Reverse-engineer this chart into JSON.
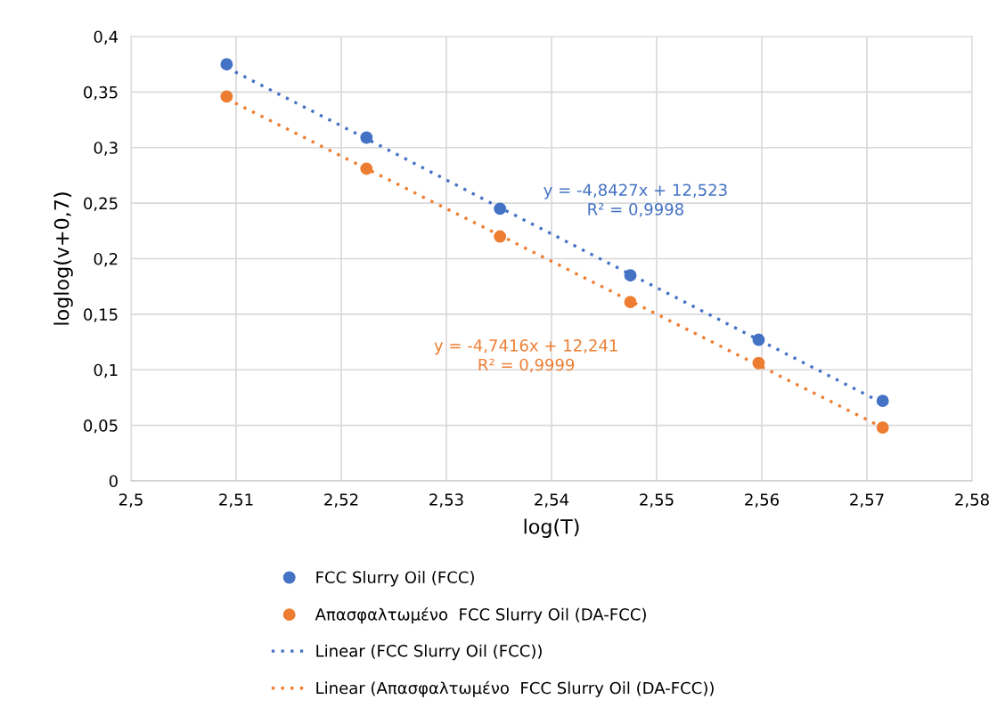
{
  "chart_data": {
    "type": "scatter",
    "xlabel": "log(T)",
    "ylabel": "loglog(v+0,7)",
    "x": [
      2.5091,
      2.5224,
      2.5351,
      2.5475,
      2.5597,
      2.5715
    ],
    "series": [
      {
        "name": "FCC Slurry Oil (FCC)",
        "color": "#4472c4",
        "marker": "circle",
        "values": [
          0.375,
          0.309,
          0.245,
          0.185,
          0.127,
          0.072
        ]
      },
      {
        "name": "Απασφαλτωμένο  FCC Slurry Oil (DA-FCC)",
        "color": "#ed7d31",
        "marker": "circle",
        "values": [
          0.346,
          0.281,
          0.22,
          0.161,
          0.106,
          0.048
        ]
      },
      {
        "name": "Linear (FCC Slurry Oil (FCC))",
        "color": "#4472c4",
        "type": "line",
        "marker": "none",
        "line_style": "dotted",
        "x": [
          2.5091,
          2.5224,
          2.5351,
          2.5475,
          2.5597,
          2.5715
        ],
        "values": [
          0.372,
          0.308,
          0.246,
          0.186,
          0.127,
          0.07
        ]
      },
      {
        "name": "Linear (Απασφαλτωμένο  FCC Slurry Oil (DA-FCC))",
        "color": "#ed7d31",
        "type": "line",
        "marker": "none",
        "line_style": "dotted",
        "x": [
          2.5091,
          2.5224,
          2.5351,
          2.5475,
          2.5597,
          2.5715
        ],
        "values": [
          0.344,
          0.281,
          0.221,
          0.162,
          0.104,
          0.048
        ]
      }
    ],
    "annotations": [
      "y = -4,8427x + 12,523\nR² = 0,9998",
      "y = -4,7416x + 12,241\nR² = 0,9999"
    ],
    "xlim": [
      2.5,
      2.58
    ],
    "xticks": [
      {
        "value": 2.5,
        "label": "2,5"
      },
      {
        "value": 2.51,
        "label": "2,51"
      },
      {
        "value": 2.52,
        "label": "2,52"
      },
      {
        "value": 2.53,
        "label": "2,53"
      },
      {
        "value": 2.54,
        "label": "2,54"
      },
      {
        "value": 2.55,
        "label": "2,55"
      },
      {
        "value": 2.56,
        "label": "2,56"
      },
      {
        "value": 2.57,
        "label": "2,57"
      },
      {
        "value": 2.58,
        "label": "2,58"
      }
    ],
    "ylim": [
      0,
      0.4
    ],
    "yticks": [
      0,
      {
        "value": 0.05,
        "label": "0,05"
      },
      {
        "value": 0.1,
        "label": "0,1"
      },
      {
        "value": 0.15,
        "label": "0,15"
      },
      {
        "value": 0.2,
        "label": "0,2"
      },
      {
        "value": 0.25,
        "label": "0,25"
      },
      {
        "value": 0.3,
        "label": "0,3"
      },
      {
        "value": 0.35,
        "label": "0,35"
      },
      {
        "value": 0.4,
        "label": "0,4"
      }
    ],
    "grid": true,
    "legend": "bottom"
  }
}
